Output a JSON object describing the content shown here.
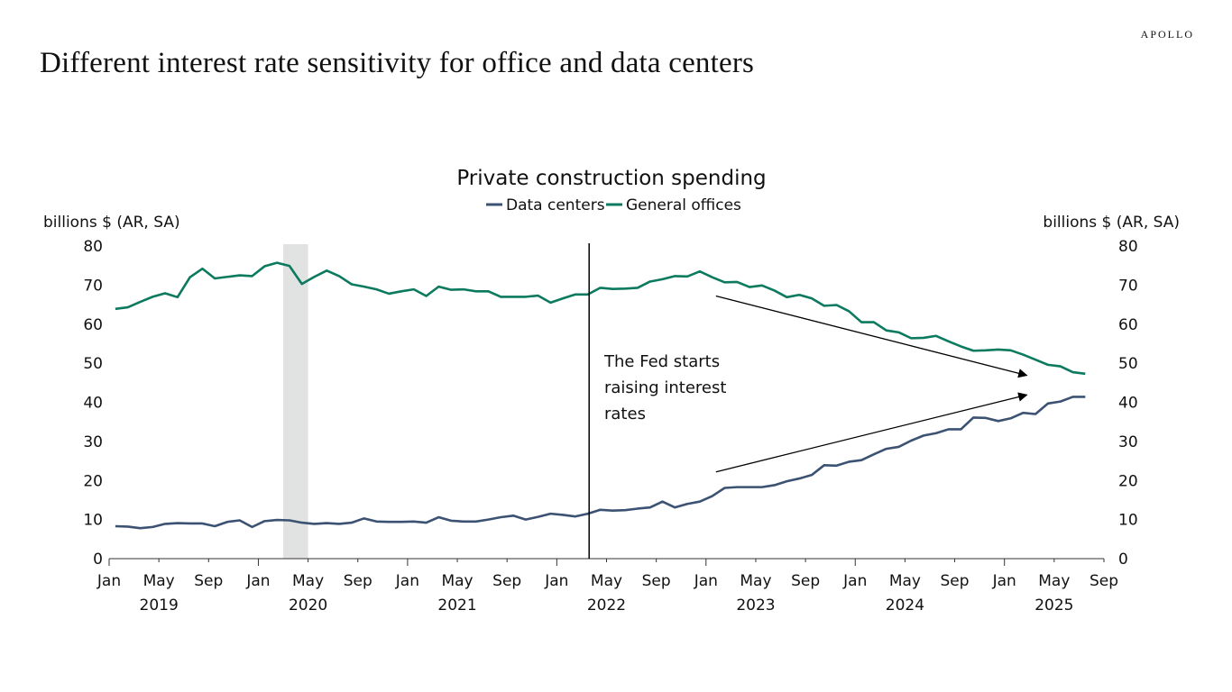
{
  "header": {
    "title": "Different interest rate sensitivity for office and data centers",
    "logo": "APOLLO"
  },
  "chart_data": {
    "type": "line",
    "title": "Private construction spending",
    "ylabel_left": "billions $ (AR, SA)",
    "ylabel_right": "billions $ (AR, SA)",
    "ylim": [
      0,
      80
    ],
    "yticks": [
      0,
      10,
      20,
      30,
      40,
      50,
      60,
      70,
      80
    ],
    "xlim": [
      "2019-01",
      "2025-09"
    ],
    "xtick_months": [
      "Jan",
      "May",
      "Sep",
      "Jan",
      "May",
      "Sep",
      "Jan",
      "May",
      "Sep",
      "Jan",
      "May",
      "Sep",
      "Jan",
      "May",
      "Sep",
      "Jan",
      "May",
      "Sep",
      "Jan",
      "May",
      "Sep"
    ],
    "xtick_years": [
      "2019",
      "2020",
      "2021",
      "2022",
      "2023",
      "2024",
      "2025"
    ],
    "legend_position": "top-center",
    "grid": false,
    "x": [
      "2019-01",
      "2019-02",
      "2019-03",
      "2019-04",
      "2019-05",
      "2019-06",
      "2019-07",
      "2019-08",
      "2019-09",
      "2019-10",
      "2019-11",
      "2019-12",
      "2020-01",
      "2020-02",
      "2020-03",
      "2020-04",
      "2020-05",
      "2020-06",
      "2020-07",
      "2020-08",
      "2020-09",
      "2020-10",
      "2020-11",
      "2020-12",
      "2021-01",
      "2021-02",
      "2021-03",
      "2021-04",
      "2021-05",
      "2021-06",
      "2021-07",
      "2021-08",
      "2021-09",
      "2021-10",
      "2021-11",
      "2021-12",
      "2022-01",
      "2022-02",
      "2022-03",
      "2022-04",
      "2022-05",
      "2022-06",
      "2022-07",
      "2022-08",
      "2022-09",
      "2022-10",
      "2022-11",
      "2022-12",
      "2023-01",
      "2023-02",
      "2023-03",
      "2023-04",
      "2023-05",
      "2023-06",
      "2023-07",
      "2023-08",
      "2023-09",
      "2023-10",
      "2023-11",
      "2023-12",
      "2024-01",
      "2024-02",
      "2024-03",
      "2024-04",
      "2024-05",
      "2024-06",
      "2024-07",
      "2024-08",
      "2024-09",
      "2024-10",
      "2024-11",
      "2024-12",
      "2025-01",
      "2025-02",
      "2025-03",
      "2025-04",
      "2025-05",
      "2025-06",
      "2025-07"
    ],
    "series": [
      {
        "name": "Data centers",
        "color": "#3b5272",
        "values": [
          8.3,
          8.2,
          7.8,
          8.1,
          8.9,
          9.1,
          9.0,
          9.0,
          8.3,
          9.4,
          9.8,
          8.1,
          9.6,
          9.9,
          9.8,
          9.2,
          8.9,
          9.1,
          8.9,
          9.2,
          10.3,
          9.5,
          9.4,
          9.4,
          9.5,
          9.2,
          10.6,
          9.7,
          9.5,
          9.5,
          10.0,
          10.6,
          11.0,
          10.0,
          10.7,
          11.5,
          11.2,
          10.8,
          11.5,
          12.5,
          12.3,
          12.4,
          12.8,
          13.1,
          14.6,
          13.1,
          14.0,
          14.6,
          16.0,
          18.1,
          18.3,
          18.3,
          18.3,
          18.8,
          19.8,
          20.5,
          21.4,
          23.9,
          23.8,
          24.8,
          25.2,
          26.7,
          28.1,
          28.6,
          30.2,
          31.5,
          32.1,
          33.1,
          33.1,
          36.1,
          36.0,
          35.2,
          35.9,
          37.3,
          37.0,
          39.7,
          40.2,
          41.4,
          41.4
        ]
      },
      {
        "name": "General offices",
        "color": "#0b7a5e",
        "values": [
          63.9,
          64.3,
          65.7,
          67.0,
          67.9,
          66.9,
          72.0,
          74.2,
          71.7,
          72.1,
          72.5,
          72.3,
          74.8,
          75.7,
          74.9,
          70.3,
          72.1,
          73.7,
          72.3,
          70.2,
          69.6,
          68.9,
          67.8,
          68.4,
          68.9,
          67.2,
          69.6,
          68.8,
          68.9,
          68.4,
          68.4,
          67.0,
          67.0,
          67.0,
          67.3,
          65.5,
          66.6,
          67.6,
          67.6,
          69.3,
          69.0,
          69.1,
          69.3,
          70.9,
          71.5,
          72.3,
          72.2,
          73.5,
          72.0,
          70.7,
          70.8,
          69.5,
          69.9,
          68.6,
          66.9,
          67.5,
          66.6,
          64.7,
          64.9,
          63.3,
          60.5,
          60.5,
          58.4,
          57.9,
          56.4,
          56.5,
          57.0,
          55.6,
          54.3,
          53.2,
          53.3,
          53.5,
          53.3,
          52.2,
          50.9,
          49.6,
          49.2,
          47.7,
          47.3
        ]
      }
    ],
    "recession_shading": {
      "start": "2020-03",
      "end": "2020-04",
      "color": "#e1e2e2"
    },
    "event_line": {
      "date": "2022-03",
      "label_lines": [
        "The Fed starts",
        "raising interest",
        "rates"
      ]
    }
  }
}
